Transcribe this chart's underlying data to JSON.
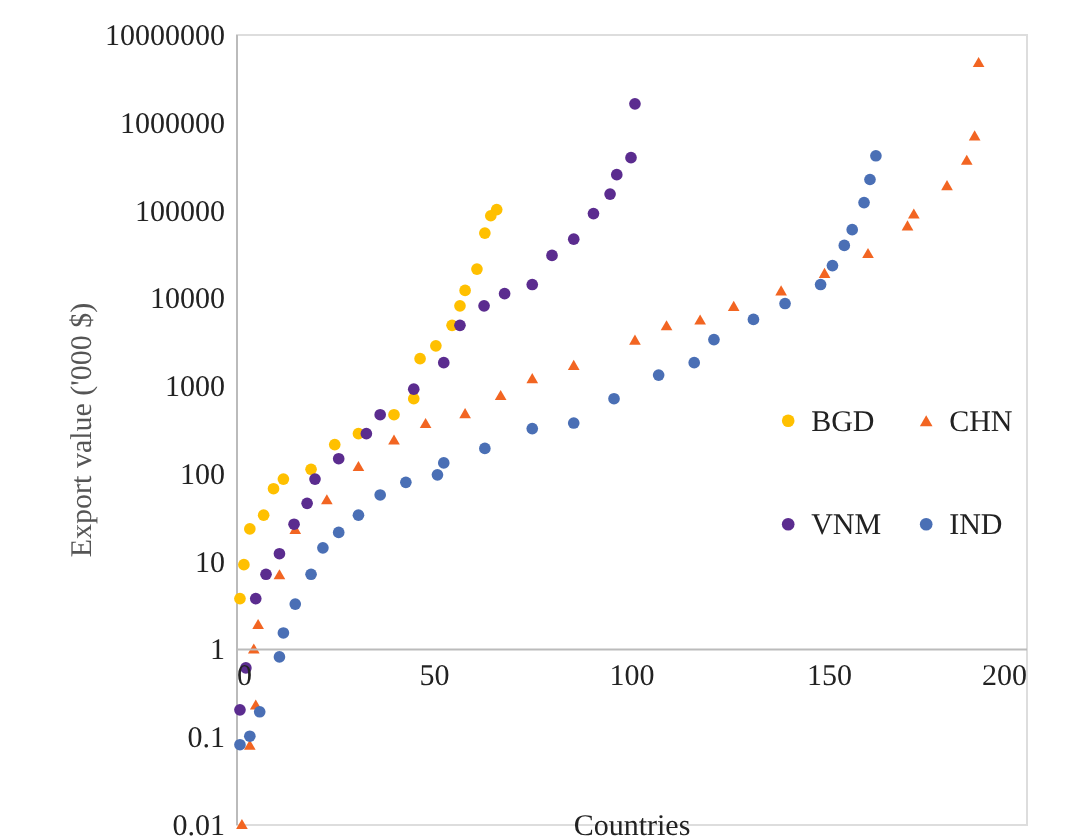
{
  "chart_data": {
    "type": "scatter",
    "xlabel": "Countries",
    "ylabel": "Export value ('000 $)",
    "log": "y",
    "xlim": [
      0,
      200
    ],
    "xticks": [
      0,
      50,
      100,
      150,
      200
    ],
    "ylim": [
      0.01,
      10000000
    ],
    "yticks": [
      0.01,
      0.1,
      1,
      10,
      100,
      1000,
      10000,
      100000,
      1000000,
      10000000
    ],
    "grid": false,
    "legend": "right",
    "series": [
      {
        "name": "BGD",
        "color": "#ffc000",
        "marker": "circle",
        "x": [
          1,
          2,
          3.5,
          7,
          9.5,
          12,
          19,
          25,
          31,
          40,
          45,
          46.6,
          50.6,
          54.7,
          56.7,
          58,
          61,
          63,
          64.5,
          66
        ],
        "values": [
          3.7,
          9,
          23,
          33,
          66,
          85,
          110,
          210,
          280,
          460,
          700,
          2000,
          2800,
          4800,
          8000,
          12000,
          21000,
          54000,
          85000,
          100000
        ]
      },
      {
        "name": "CHN",
        "color": "#f26522",
        "marker": "triangle",
        "x": [
          1.5,
          3.5,
          4.5,
          5,
          5.6,
          11,
          15,
          23,
          31,
          40,
          48,
          58,
          67,
          75,
          85.5,
          101,
          109,
          117.5,
          126,
          138,
          149,
          160,
          170,
          171.6,
          180,
          185,
          187,
          188
        ],
        "values": [
          0.01,
          0.08,
          1,
          0.23,
          1.9,
          7,
          23,
          50,
          120,
          240,
          370,
          480,
          770,
          1200,
          1700,
          3300,
          4800,
          5600,
          8000,
          12000,
          19000,
          32000,
          66000,
          90000,
          190000,
          370000,
          700000,
          4800000
        ]
      },
      {
        "name": "VNM",
        "color": "#5b2c8f",
        "marker": "circle",
        "x": [
          1,
          2.5,
          5,
          7.6,
          11,
          14.7,
          18,
          20,
          26,
          33,
          36.5,
          45,
          52.6,
          56.7,
          62.8,
          68,
          75,
          80,
          85.5,
          90.5,
          94.7,
          96.4,
          100,
          101
        ],
        "values": [
          0.2,
          0.6,
          3.7,
          7,
          12,
          26,
          45,
          85,
          145,
          280,
          460,
          900,
          1800,
          4800,
          8000,
          11000,
          14000,
          30000,
          46000,
          90000,
          150000,
          250000,
          390000,
          1600000
        ]
      },
      {
        "name": "IND",
        "color": "#4a6fb5",
        "marker": "circle",
        "x": [
          1,
          3.5,
          6,
          11,
          12,
          15,
          19,
          22,
          26,
          31,
          36.5,
          43,
          51,
          52.6,
          63,
          75,
          85.5,
          95.7,
          107,
          116,
          121,
          131,
          139,
          148,
          151,
          154,
          156,
          159,
          160.5,
          162
        ],
        "values": [
          0.08,
          0.1,
          0.19,
          0.8,
          1.5,
          3.2,
          7,
          14,
          21,
          33,
          56,
          78,
          95,
          130,
          190,
          320,
          370,
          700,
          1300,
          1800,
          3300,
          5600,
          8500,
          14000,
          23000,
          39000,
          59000,
          120000,
          220000,
          410000
        ]
      }
    ]
  }
}
